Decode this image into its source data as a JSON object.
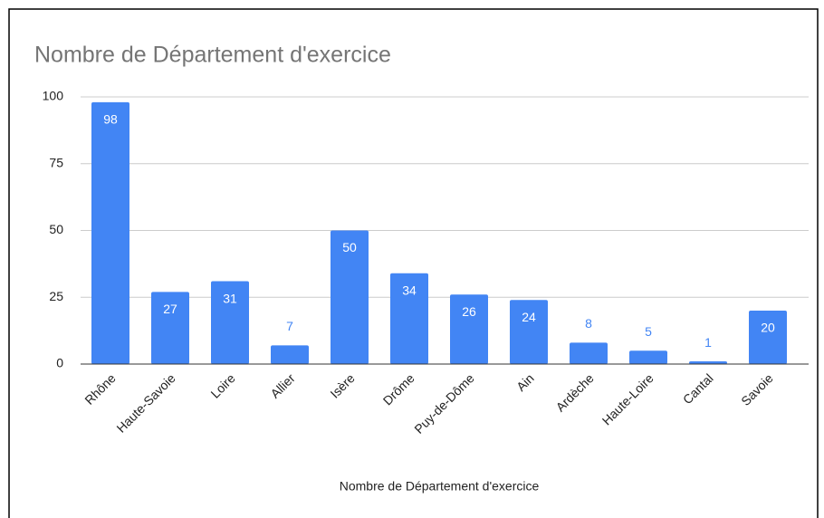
{
  "chart_data": {
    "type": "bar",
    "title": "Nombre de Département d'exercice",
    "x_label": "Nombre de Département d'exercice",
    "categories": [
      "Rhône",
      "Haute-Savoie",
      "Loire",
      "Allier",
      "Isère",
      "Drôme",
      "Puy-de-Dôme",
      "Ain",
      "Ardèche",
      "Haute-Loire",
      "Cantal",
      "Savoie"
    ],
    "values": [
      98,
      27,
      31,
      7,
      50,
      34,
      26,
      24,
      8,
      5,
      1,
      20
    ],
    "color": "#4285f4",
    "ylim": [
      0,
      100
    ],
    "yticks": [
      0,
      25,
      50,
      75,
      100
    ],
    "grid": true
  }
}
